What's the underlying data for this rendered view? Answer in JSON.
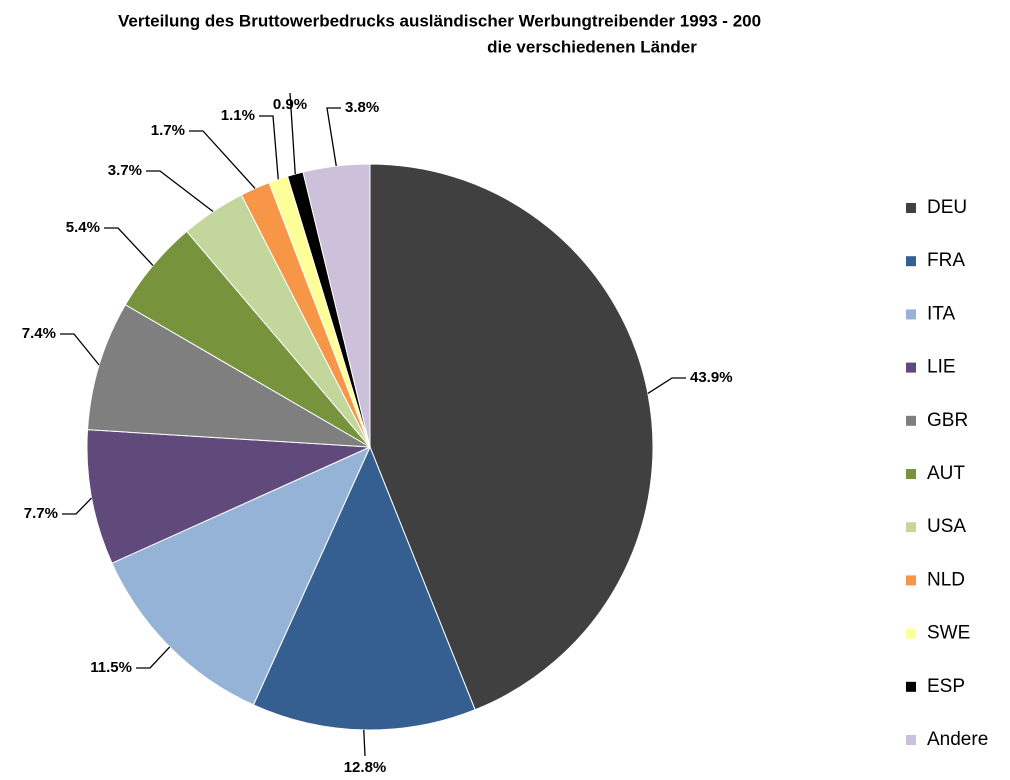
{
  "chart_data": {
    "type": "pie",
    "title": [
      "Verteilung des Bruttowerbedrucks  ausländischer Werbungtreibender 1993 - 200",
      "die verschiedenen Länder"
    ],
    "categories": [
      "DEU",
      "FRA",
      "ITA",
      "LIE",
      "GBR",
      "AUT",
      "USA",
      "NLD",
      "SWE",
      "ESP",
      "Andere"
    ],
    "values": [
      43.9,
      12.8,
      11.5,
      7.7,
      7.4,
      5.4,
      3.7,
      1.7,
      1.1,
      0.9,
      3.8
    ],
    "value_labels": [
      "43.9%",
      "12.8%",
      "11.5%",
      "7.7%",
      "7.4%",
      "5.4%",
      "3.7%",
      "1.7%",
      "1.1%",
      "0.9%",
      "3.8%"
    ],
    "colors": [
      "#404040",
      "#355f91",
      "#95b3d7",
      "#604a7b",
      "#7f7f7f",
      "#77933c",
      "#c3d69b",
      "#f79646",
      "#ffff99",
      "#000000",
      "#ccc0da"
    ],
    "legend": "right"
  }
}
